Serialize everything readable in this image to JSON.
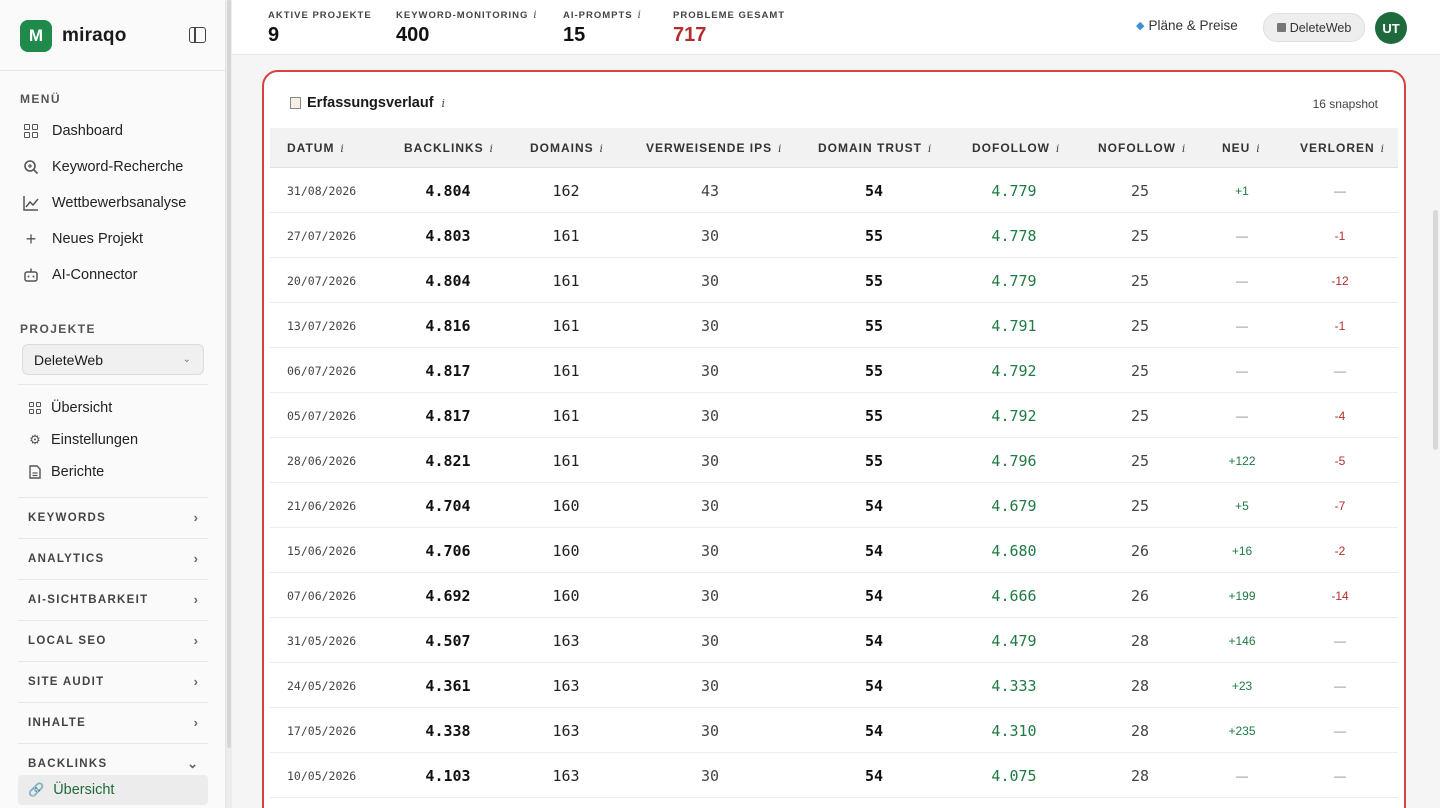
{
  "brand": {
    "logo_letter": "M",
    "name": "miraqo"
  },
  "sidebar": {
    "menu_label": "MENÜ",
    "menu": [
      {
        "label": "Dashboard",
        "icon": "grid-icon"
      },
      {
        "label": "Keyword-Recherche",
        "icon": "search-icon"
      },
      {
        "label": "Wettbewerbsanalyse",
        "icon": "chart-line-icon"
      },
      {
        "label": "Neues Projekt",
        "icon": "plus-icon"
      },
      {
        "label": "AI-Connector",
        "icon": "robot-icon"
      }
    ],
    "projects_label": "PROJEKTE",
    "project_select": "DeleteWeb",
    "project_items": [
      {
        "label": "Übersicht",
        "icon": "grid-icon"
      },
      {
        "label": "Einstellungen",
        "icon": "gear-icon"
      },
      {
        "label": "Berichte",
        "icon": "file-icon"
      }
    ],
    "groups": [
      "KEYWORDS",
      "ANALYTICS",
      "AI-SICHTBARKEIT",
      "LOCAL SEO",
      "SITE AUDIT",
      "INHALTE",
      "BACKLINKS"
    ],
    "active_item": "Übersicht"
  },
  "topbar": {
    "stats": [
      {
        "label": "AKTIVE PROJEKTE",
        "value": "9",
        "info": false
      },
      {
        "label": "KEYWORD-MONITORING",
        "value": "400",
        "info": true
      },
      {
        "label": "AI-PROMPTS",
        "value": "15",
        "info": true
      },
      {
        "label": "PROBLEME GESAMT",
        "value": "717",
        "info": false,
        "color": "#b42d2d"
      }
    ],
    "plans_label": "Pläne & Preise",
    "project_pill": "DeleteWeb",
    "avatar": "UT"
  },
  "card": {
    "title": "Erfassungsverlauf",
    "info": "i",
    "snapshot": "16 snapshot",
    "columns": [
      "DATUM",
      "BACKLINKS",
      "DOMAINS",
      "VERWEISENDE IPS",
      "DOMAIN TRUST",
      "DOFOLLOW",
      "NOFOLLOW",
      "NEU",
      "VERLOREN"
    ],
    "rows": [
      {
        "date": "31/08/2026",
        "backlinks": "4.804",
        "domains": "162",
        "ips": "43",
        "trust": "54",
        "dofollow": "4.779",
        "nofollow": "25",
        "neu": "+1",
        "verloren": "—"
      },
      {
        "date": "27/07/2026",
        "backlinks": "4.803",
        "domains": "161",
        "ips": "30",
        "trust": "55",
        "dofollow": "4.778",
        "nofollow": "25",
        "neu": "—",
        "verloren": "-1"
      },
      {
        "date": "20/07/2026",
        "backlinks": "4.804",
        "domains": "161",
        "ips": "30",
        "trust": "55",
        "dofollow": "4.779",
        "nofollow": "25",
        "neu": "—",
        "verloren": "-12"
      },
      {
        "date": "13/07/2026",
        "backlinks": "4.816",
        "domains": "161",
        "ips": "30",
        "trust": "55",
        "dofollow": "4.791",
        "nofollow": "25",
        "neu": "—",
        "verloren": "-1"
      },
      {
        "date": "06/07/2026",
        "backlinks": "4.817",
        "domains": "161",
        "ips": "30",
        "trust": "55",
        "dofollow": "4.792",
        "nofollow": "25",
        "neu": "—",
        "verloren": "—"
      },
      {
        "date": "05/07/2026",
        "backlinks": "4.817",
        "domains": "161",
        "ips": "30",
        "trust": "55",
        "dofollow": "4.792",
        "nofollow": "25",
        "neu": "—",
        "verloren": "-4"
      },
      {
        "date": "28/06/2026",
        "backlinks": "4.821",
        "domains": "161",
        "ips": "30",
        "trust": "55",
        "dofollow": "4.796",
        "nofollow": "25",
        "neu": "+122",
        "verloren": "-5"
      },
      {
        "date": "21/06/2026",
        "backlinks": "4.704",
        "domains": "160",
        "ips": "30",
        "trust": "54",
        "dofollow": "4.679",
        "nofollow": "25",
        "neu": "+5",
        "verloren": "-7"
      },
      {
        "date": "15/06/2026",
        "backlinks": "4.706",
        "domains": "160",
        "ips": "30",
        "trust": "54",
        "dofollow": "4.680",
        "nofollow": "26",
        "neu": "+16",
        "verloren": "-2"
      },
      {
        "date": "07/06/2026",
        "backlinks": "4.692",
        "domains": "160",
        "ips": "30",
        "trust": "54",
        "dofollow": "4.666",
        "nofollow": "26",
        "neu": "+199",
        "verloren": "-14"
      },
      {
        "date": "31/05/2026",
        "backlinks": "4.507",
        "domains": "163",
        "ips": "30",
        "trust": "54",
        "dofollow": "4.479",
        "nofollow": "28",
        "neu": "+146",
        "verloren": "—"
      },
      {
        "date": "24/05/2026",
        "backlinks": "4.361",
        "domains": "163",
        "ips": "30",
        "trust": "54",
        "dofollow": "4.333",
        "nofollow": "28",
        "neu": "+23",
        "verloren": "—"
      },
      {
        "date": "17/05/2026",
        "backlinks": "4.338",
        "domains": "163",
        "ips": "30",
        "trust": "54",
        "dofollow": "4.310",
        "nofollow": "28",
        "neu": "+235",
        "verloren": "—"
      },
      {
        "date": "10/05/2026",
        "backlinks": "4.103",
        "domains": "163",
        "ips": "30",
        "trust": "54",
        "dofollow": "4.075",
        "nofollow": "28",
        "neu": "—",
        "verloren": "—"
      }
    ]
  },
  "colors": {
    "accent": "#1f8a4c",
    "positive": "#1f7a43",
    "negative": "#b42d2d",
    "highlight_border": "#d84242"
  }
}
